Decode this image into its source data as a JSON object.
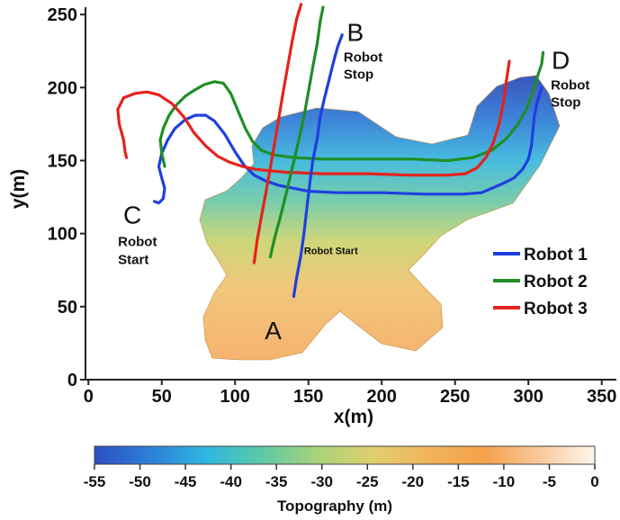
{
  "chart_data": {
    "type": "line",
    "title": "",
    "xlabel": "x(m)",
    "ylabel": "y(m)",
    "xlim": [
      -2,
      360
    ],
    "ylim": [
      0,
      255
    ],
    "xticks": [
      0,
      50,
      100,
      150,
      200,
      250,
      300,
      350
    ],
    "yticks": [
      0,
      50,
      100,
      150,
      200,
      250
    ],
    "grid": false,
    "legend_position": "right",
    "series": [
      {
        "name": "Robot 1",
        "color": "#1f3fe0",
        "points": [
          [
            45,
            122
          ],
          [
            48,
            121
          ],
          [
            51,
            124
          ],
          [
            52,
            131
          ],
          [
            50,
            138
          ],
          [
            48,
            146
          ],
          [
            50,
            155
          ],
          [
            54,
            164
          ],
          [
            59,
            172
          ],
          [
            66,
            178
          ],
          [
            73,
            181
          ],
          [
            80,
            181
          ],
          [
            86,
            177
          ],
          [
            93,
            168
          ],
          [
            100,
            156
          ],
          [
            106,
            147
          ],
          [
            113,
            140
          ],
          [
            121,
            136
          ],
          [
            130,
            133
          ],
          [
            140,
            131
          ],
          [
            150,
            129
          ],
          [
            170,
            128
          ],
          [
            200,
            128
          ],
          [
            230,
            127
          ],
          [
            255,
            127
          ],
          [
            268,
            128
          ],
          [
            275,
            131
          ],
          [
            282,
            134
          ],
          [
            290,
            138
          ],
          [
            296,
            144
          ],
          [
            300,
            151
          ],
          [
            302,
            160
          ],
          [
            303,
            170
          ],
          [
            304,
            180
          ],
          [
            306,
            190
          ],
          [
            309,
            200
          ]
        ]
      },
      {
        "name": "Robot 2",
        "color": "#1f8e26",
        "points": [
          [
            52,
            146
          ],
          [
            50,
            155
          ],
          [
            49,
            164
          ],
          [
            51,
            172
          ],
          [
            55,
            181
          ],
          [
            60,
            188
          ],
          [
            66,
            194
          ],
          [
            72,
            198
          ],
          [
            79,
            202
          ],
          [
            86,
            204
          ],
          [
            92,
            203
          ],
          [
            97,
            196
          ],
          [
            102,
            184
          ],
          [
            107,
            172
          ],
          [
            112,
            163
          ],
          [
            118,
            157
          ],
          [
            126,
            154
          ],
          [
            140,
            152
          ],
          [
            160,
            151
          ],
          [
            190,
            151
          ],
          [
            220,
            151
          ],
          [
            245,
            150
          ],
          [
            262,
            152
          ],
          [
            275,
            157
          ],
          [
            285,
            165
          ],
          [
            293,
            175
          ],
          [
            299,
            186
          ],
          [
            303,
            197
          ],
          [
            306,
            207
          ],
          [
            309,
            216
          ],
          [
            310,
            224
          ]
        ]
      },
      {
        "name": "Robot 3",
        "color": "#e5231c",
        "points": [
          [
            26,
            152
          ],
          [
            25,
            156
          ],
          [
            24,
            164
          ],
          [
            21,
            175
          ],
          [
            20,
            185
          ],
          [
            24,
            193
          ],
          [
            32,
            196
          ],
          [
            40,
            197
          ],
          [
            48,
            195
          ],
          [
            57,
            189
          ],
          [
            65,
            180
          ],
          [
            72,
            169
          ],
          [
            80,
            160
          ],
          [
            88,
            153
          ],
          [
            96,
            149
          ],
          [
            105,
            146
          ],
          [
            114,
            144
          ],
          [
            124,
            143
          ],
          [
            135,
            142
          ],
          [
            160,
            141
          ],
          [
            190,
            141
          ],
          [
            220,
            140
          ],
          [
            245,
            140
          ],
          [
            257,
            141
          ],
          [
            265,
            145
          ],
          [
            271,
            152
          ],
          [
            276,
            162
          ],
          [
            280,
            175
          ],
          [
            283,
            190
          ],
          [
            285,
            205
          ],
          [
            287,
            218
          ]
        ]
      },
      {
        "name": "Robot 1",
        "color": "#1f3fe0",
        "points": [
          [
            140,
            57
          ],
          [
            142,
            70
          ],
          [
            145,
            86
          ],
          [
            147,
            100
          ],
          [
            149,
            118
          ],
          [
            151,
            135
          ],
          [
            153,
            150
          ],
          [
            156,
            165
          ],
          [
            158,
            180
          ],
          [
            161,
            193
          ],
          [
            164,
            205
          ],
          [
            167,
            217
          ],
          [
            170,
            228
          ],
          [
            173,
            236
          ]
        ]
      },
      {
        "name": "Robot 2",
        "color": "#1f8e26",
        "points": [
          [
            124,
            84
          ],
          [
            127,
            97
          ],
          [
            131,
            112
          ],
          [
            135,
            128
          ],
          [
            139,
            145
          ],
          [
            143,
            162
          ],
          [
            147,
            180
          ],
          [
            150,
            197
          ],
          [
            153,
            214
          ],
          [
            156,
            230
          ],
          [
            158,
            245
          ],
          [
            160,
            255
          ]
        ]
      },
      {
        "name": "Robot 3",
        "color": "#e5231c",
        "points": [
          [
            113,
            80
          ],
          [
            115,
            95
          ],
          [
            118,
            112
          ],
          [
            121,
            128
          ],
          [
            124,
            145
          ],
          [
            127,
            162
          ],
          [
            130,
            180
          ],
          [
            133,
            198
          ],
          [
            136,
            215
          ],
          [
            139,
            232
          ],
          [
            142,
            247
          ],
          [
            145,
            257
          ]
        ]
      }
    ],
    "annotations": [
      {
        "letter": "A",
        "x": 126,
        "y": 34
      },
      {
        "letter": "B",
        "x": 182,
        "y": 238,
        "note_lines": [
          "Robot",
          "Stop"
        ]
      },
      {
        "letter": "C",
        "x": 30,
        "y": 113,
        "note_lines": [
          "Robot",
          "Start"
        ]
      },
      {
        "letter": "D",
        "x": 322,
        "y": 219,
        "note_lines": [
          "Robot",
          "Stop"
        ]
      },
      {
        "note": "Robot Start",
        "x": 147,
        "y": 86
      }
    ],
    "colorbar": {
      "title": "Topography (m)",
      "range": [
        -55,
        0
      ],
      "ticks": [
        -55,
        -50,
        -45,
        -40,
        -35,
        -30,
        -25,
        -20,
        -15,
        -10,
        -5,
        0
      ],
      "colors": [
        "#2c4fc4",
        "#2e7fd8",
        "#2eb6e0",
        "#5cc9a6",
        "#a7d27a",
        "#e0cf6f",
        "#f0b45c",
        "#f4a24a",
        "#f8c89a",
        "#fff6ea"
      ]
    }
  }
}
